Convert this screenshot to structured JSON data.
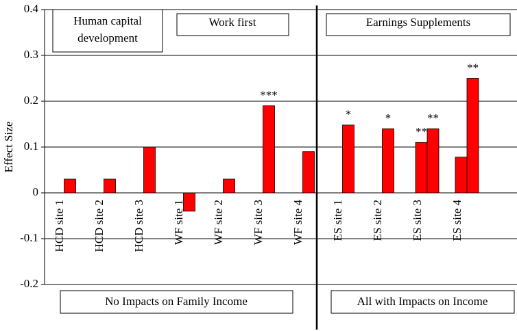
{
  "chart_data": {
    "type": "bar",
    "ylabel": "Effect Size",
    "categories": [
      "HCD site 1",
      "HCD site 2",
      "HCD site 3",
      "WF site 1",
      "WF site 2",
      "WF site 3",
      "WF site 4",
      "ES site 1",
      "ES site 2",
      "ES site 3",
      "ES site 4"
    ],
    "series": [
      {
        "color": "#ff0000",
        "values": [
          0.03,
          0.03,
          0.1,
          -0.04,
          0.03,
          0.19,
          0.09,
          0.148,
          0.14,
          0.11,
          0.078
        ],
        "significance": [
          null,
          null,
          null,
          null,
          null,
          "***",
          null,
          "*",
          "*",
          "**",
          null
        ]
      },
      {
        "color": "#ff0000",
        "values": [
          null,
          null,
          null,
          null,
          null,
          null,
          null,
          null,
          null,
          0.14,
          0.25
        ],
        "significance": [
          null,
          null,
          null,
          null,
          null,
          null,
          null,
          null,
          null,
          "**",
          "**"
        ]
      }
    ],
    "ylim": [
      -0.2,
      0.4
    ],
    "yticks": [
      -0.2,
      -0.1,
      0,
      0.1,
      0.2,
      0.3,
      0.4
    ],
    "grid": true,
    "group_labels": {
      "hcd": [
        "Human capital",
        "development"
      ],
      "wf": "Work first",
      "es": "Earnings Supplements"
    },
    "footer_labels": [
      "No Impacts on Family Income",
      "All with Impacts on Income"
    ]
  }
}
